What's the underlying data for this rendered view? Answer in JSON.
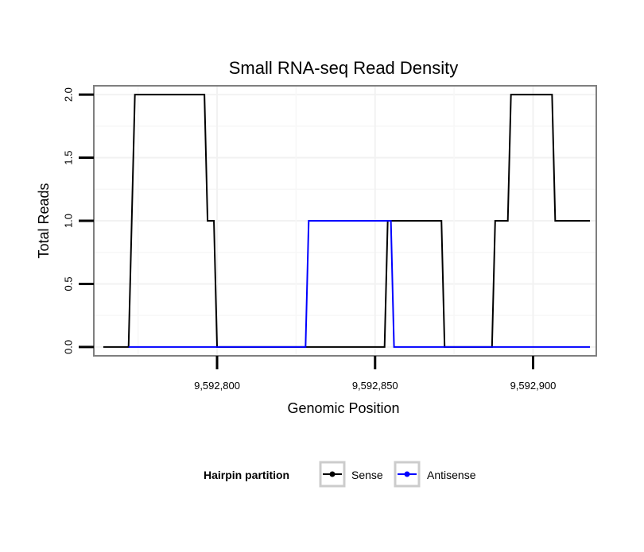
{
  "chart_data": {
    "type": "line",
    "title": "Small RNA-seq Read Density",
    "xlabel": "Genomic Position",
    "ylabel": "Total Reads",
    "xlim": [
      9592761,
      9592920
    ],
    "ylim": [
      -0.07,
      2.07
    ],
    "x_ticks": [
      {
        "value": 9592800,
        "label": "9,592,800"
      },
      {
        "value": 9592850,
        "label": "9,592,850"
      },
      {
        "value": 9592900,
        "label": "9,592,900"
      }
    ],
    "y_ticks": [
      {
        "value": 0.0,
        "label": "0.0"
      },
      {
        "value": 0.5,
        "label": "0.5"
      },
      {
        "value": 1.0,
        "label": "1.0"
      },
      {
        "value": 1.5,
        "label": "1.5"
      },
      {
        "value": 2.0,
        "label": "2.0"
      }
    ],
    "grid": true,
    "legend": {
      "title": "Hairpin partition",
      "position": "bottom"
    },
    "series": [
      {
        "name": "Sense",
        "color": "#000000",
        "x": [
          9592764,
          9592772,
          9592774,
          9592796,
          9592797,
          9592799,
          9592800,
          9592853,
          9592854,
          9592871,
          9592872,
          9592887,
          9592888,
          9592892,
          9592893,
          9592906,
          9592907,
          9592918
        ],
        "y": [
          0,
          0,
          2,
          2,
          1,
          1,
          0,
          0,
          1,
          1,
          0,
          0,
          1,
          1,
          2,
          2,
          1,
          1
        ]
      },
      {
        "name": "Antisense",
        "color": "#0000ff",
        "x": [
          9592772,
          9592828,
          9592829,
          9592855,
          9592856,
          9592918
        ],
        "y": [
          0,
          0,
          1,
          1,
          0,
          0
        ]
      }
    ]
  }
}
